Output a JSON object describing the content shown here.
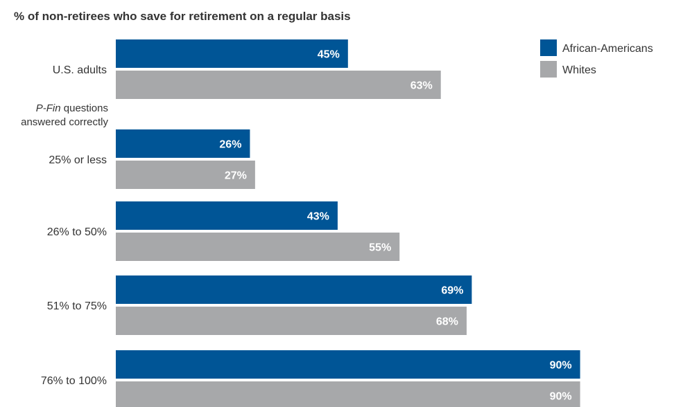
{
  "chart_data": {
    "type": "bar",
    "orientation": "horizontal",
    "title": "% of non-retirees who save for retirement on a regular basis",
    "group_header": {
      "italic": "P-Fin",
      "line1_rest": " questions",
      "line2": "answered correctly"
    },
    "categories": [
      "U.S. adults",
      "25% or less",
      "26% to 50%",
      "51% to 75%",
      "76% to 100%"
    ],
    "series": [
      {
        "name": "African-Americans",
        "color": "#005596",
        "values": [
          45,
          26,
          43,
          69,
          90
        ],
        "labels": [
          "45%",
          "26%",
          "43%",
          "69%",
          "90%"
        ]
      },
      {
        "name": "Whites",
        "color": "#a7a8aa",
        "values": [
          63,
          27,
          55,
          68,
          90
        ],
        "labels": [
          "63%",
          "27%",
          "55%",
          "68%",
          "90%"
        ]
      }
    ],
    "xlim": [
      0,
      100
    ],
    "grid": false,
    "legend": "top-right"
  }
}
